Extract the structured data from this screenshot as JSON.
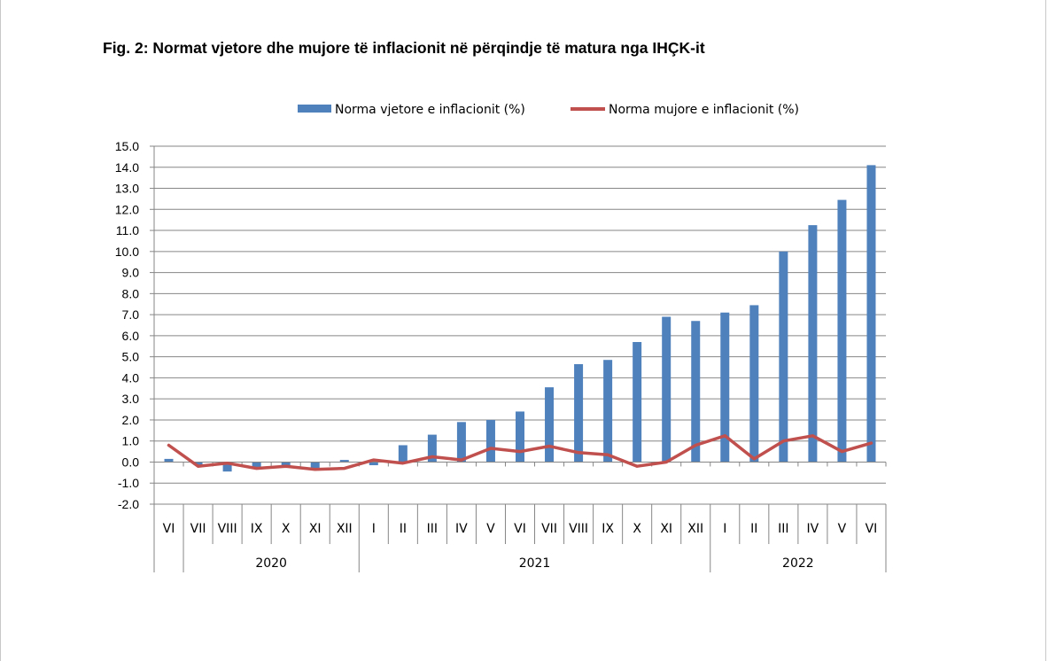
{
  "figure": {
    "title": "Fig.  2: Normat vjetore dhe mujore të inflacionit në përqindje të matura nga IHÇK-it"
  },
  "colors": {
    "bar": "#4F81BD",
    "line": "#C0504D",
    "grid": "#868686",
    "axis": "#868686"
  },
  "chart_data": {
    "type": "bar",
    "categories": [
      "VI",
      "VII",
      "VIII",
      "IX",
      "X",
      "XI",
      "XII",
      "I",
      "II",
      "III",
      "IV",
      "V",
      "VI",
      "VII",
      "VIII",
      "IX",
      "X",
      "XI",
      "XII",
      "I",
      "II",
      "III",
      "IV",
      "V",
      "VI"
    ],
    "year_groups": [
      {
        "label": "",
        "start": 0,
        "end": 0
      },
      {
        "label": "2020",
        "start": 1,
        "end": 6
      },
      {
        "label": "2021",
        "start": 7,
        "end": 18
      },
      {
        "label": "2022",
        "start": 19,
        "end": 24
      }
    ],
    "series": [
      {
        "name": "Norma vjetore e inflacionit (%)",
        "kind": "bar",
        "values": [
          0.15,
          -0.15,
          -0.45,
          -0.3,
          -0.25,
          -0.3,
          0.1,
          -0.15,
          0.8,
          1.3,
          1.9,
          2.0,
          2.4,
          3.55,
          4.65,
          4.85,
          5.7,
          6.9,
          6.7,
          7.1,
          7.45,
          10.0,
          11.25,
          12.45,
          14.1
        ]
      },
      {
        "name": "Norma mujore e inflacionit (%)",
        "kind": "line",
        "values": [
          0.8,
          -0.2,
          -0.05,
          -0.3,
          -0.2,
          -0.35,
          -0.3,
          0.1,
          -0.05,
          0.25,
          0.1,
          0.65,
          0.5,
          0.75,
          0.45,
          0.35,
          -0.2,
          0.0,
          0.8,
          1.25,
          0.15,
          1.0,
          1.25,
          0.5,
          0.9
        ]
      }
    ],
    "ylim": [
      -2.0,
      15.0
    ],
    "yticks": [
      "-2.0",
      "-1.0",
      "0.0",
      "1.0",
      "2.0",
      "3.0",
      "4.0",
      "5.0",
      "6.0",
      "7.0",
      "8.0",
      "9.0",
      "10.0",
      "11.0",
      "12.0",
      "13.0",
      "14.0",
      "15.0"
    ],
    "grid": true,
    "legend_position": "top"
  }
}
